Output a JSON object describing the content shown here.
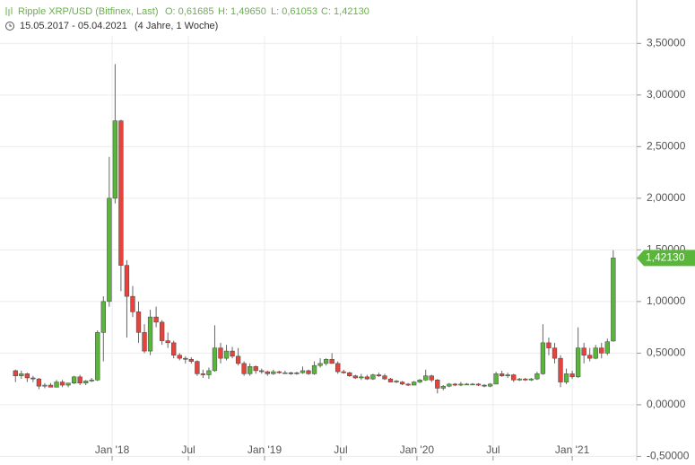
{
  "chart_data": {
    "type": "candlestick",
    "header": {
      "title": "Ripple XRP/USD (Bitfinex, Last)",
      "open": "O: 0,61685",
      "high": "H: 1,49650",
      "low": "L: 0,61053",
      "close": "C: 1,42130",
      "range": "15.05.2017 - 05.04.2021",
      "duration": "(4 Jahre, 1 Woche)"
    },
    "last_label": "1,42130",
    "up_color": "#5ab53b",
    "down_color": "#e5433b",
    "grid": true,
    "ylim": [
      -0.54,
      3.92
    ],
    "yticks": [
      {
        "value": -0.5,
        "label": "-0,50000"
      },
      {
        "value": 0,
        "label": "0,00000"
      },
      {
        "value": 0.5,
        "label": "0,50000"
      },
      {
        "value": 1,
        "label": "1,00000"
      },
      {
        "value": 1.5,
        "label": "1,50000"
      },
      {
        "value": 2,
        "label": "2,00000"
      },
      {
        "value": 2.5,
        "label": "2,50000"
      },
      {
        "value": 3,
        "label": "3,00000"
      },
      {
        "value": 3.5,
        "label": "3,50000"
      }
    ],
    "xticks": [
      {
        "value": 16.5,
        "label": "Jan '18"
      },
      {
        "value": 29.5,
        "label": "Jul"
      },
      {
        "value": 42.5,
        "label": "Jan '19"
      },
      {
        "value": 55.5,
        "label": "Jul"
      },
      {
        "value": 68.5,
        "label": "Jan '20"
      },
      {
        "value": 81.5,
        "label": "Jul"
      },
      {
        "value": 95,
        "label": "Jan '21"
      }
    ],
    "ohlc": [
      [
        0.33,
        0.34,
        0.22,
        0.28
      ],
      [
        0.28,
        0.33,
        0.25,
        0.3
      ],
      [
        0.3,
        0.31,
        0.22,
        0.26
      ],
      [
        0.26,
        0.28,
        0.22,
        0.25
      ],
      [
        0.25,
        0.26,
        0.15,
        0.18
      ],
      [
        0.18,
        0.21,
        0.16,
        0.19
      ],
      [
        0.19,
        0.21,
        0.17,
        0.17
      ],
      [
        0.17,
        0.24,
        0.17,
        0.22
      ],
      [
        0.22,
        0.24,
        0.17,
        0.19
      ],
      [
        0.19,
        0.21,
        0.17,
        0.21
      ],
      [
        0.21,
        0.28,
        0.2,
        0.27
      ],
      [
        0.27,
        0.29,
        0.19,
        0.21
      ],
      [
        0.21,
        0.24,
        0.19,
        0.23
      ],
      [
        0.23,
        0.26,
        0.22,
        0.24
      ],
      [
        0.24,
        0.72,
        0.23,
        0.7
      ],
      [
        0.7,
        1.05,
        0.42,
        1.0
      ],
      [
        1.0,
        2.4,
        0.95,
        2.0
      ],
      [
        2.0,
        3.3,
        1.95,
        2.75
      ],
      [
        2.75,
        2.76,
        1.1,
        1.35
      ],
      [
        1.35,
        1.4,
        0.65,
        1.05
      ],
      [
        1.05,
        1.15,
        0.85,
        0.9
      ],
      [
        0.9,
        1.0,
        0.6,
        0.7
      ],
      [
        0.7,
        0.78,
        0.5,
        0.52
      ],
      [
        0.52,
        0.92,
        0.48,
        0.85
      ],
      [
        0.85,
        0.95,
        0.75,
        0.8
      ],
      [
        0.8,
        0.82,
        0.58,
        0.62
      ],
      [
        0.62,
        0.7,
        0.55,
        0.6
      ],
      [
        0.6,
        0.62,
        0.45,
        0.48
      ],
      [
        0.48,
        0.5,
        0.43,
        0.45
      ],
      [
        0.45,
        0.47,
        0.4,
        0.44
      ],
      [
        0.44,
        0.46,
        0.4,
        0.42
      ],
      [
        0.42,
        0.43,
        0.28,
        0.3
      ],
      [
        0.3,
        0.34,
        0.26,
        0.29
      ],
      [
        0.29,
        0.36,
        0.25,
        0.33
      ],
      [
        0.33,
        0.77,
        0.32,
        0.55
      ],
      [
        0.55,
        0.6,
        0.4,
        0.45
      ],
      [
        0.45,
        0.58,
        0.43,
        0.52
      ],
      [
        0.52,
        0.56,
        0.45,
        0.47
      ],
      [
        0.47,
        0.55,
        0.38,
        0.4
      ],
      [
        0.4,
        0.42,
        0.28,
        0.3
      ],
      [
        0.3,
        0.4,
        0.28,
        0.37
      ],
      [
        0.37,
        0.38,
        0.3,
        0.33
      ],
      [
        0.33,
        0.35,
        0.3,
        0.32
      ],
      [
        0.32,
        0.33,
        0.28,
        0.3
      ],
      [
        0.3,
        0.34,
        0.29,
        0.32
      ],
      [
        0.32,
        0.33,
        0.3,
        0.31
      ],
      [
        0.31,
        0.33,
        0.3,
        0.31
      ],
      [
        0.31,
        0.32,
        0.29,
        0.3
      ],
      [
        0.3,
        0.32,
        0.29,
        0.31
      ],
      [
        0.31,
        0.37,
        0.3,
        0.33
      ],
      [
        0.33,
        0.34,
        0.29,
        0.3
      ],
      [
        0.3,
        0.42,
        0.29,
        0.38
      ],
      [
        0.38,
        0.45,
        0.36,
        0.4
      ],
      [
        0.4,
        0.45,
        0.38,
        0.44
      ],
      [
        0.44,
        0.5,
        0.4,
        0.4
      ],
      [
        0.4,
        0.42,
        0.3,
        0.32
      ],
      [
        0.32,
        0.34,
        0.3,
        0.31
      ],
      [
        0.31,
        0.32,
        0.27,
        0.28
      ],
      [
        0.28,
        0.29,
        0.25,
        0.26
      ],
      [
        0.26,
        0.3,
        0.24,
        0.27
      ],
      [
        0.27,
        0.29,
        0.24,
        0.25
      ],
      [
        0.25,
        0.3,
        0.24,
        0.29
      ],
      [
        0.29,
        0.31,
        0.27,
        0.28
      ],
      [
        0.28,
        0.3,
        0.24,
        0.25
      ],
      [
        0.25,
        0.26,
        0.22,
        0.22
      ],
      [
        0.22,
        0.24,
        0.21,
        0.23
      ],
      [
        0.22,
        0.23,
        0.19,
        0.2
      ],
      [
        0.2,
        0.21,
        0.18,
        0.19
      ],
      [
        0.19,
        0.23,
        0.19,
        0.22
      ],
      [
        0.22,
        0.25,
        0.21,
        0.24
      ],
      [
        0.24,
        0.34,
        0.23,
        0.28
      ],
      [
        0.28,
        0.29,
        0.22,
        0.24
      ],
      [
        0.24,
        0.25,
        0.11,
        0.16
      ],
      [
        0.16,
        0.19,
        0.14,
        0.18
      ],
      [
        0.18,
        0.21,
        0.17,
        0.2
      ],
      [
        0.2,
        0.21,
        0.18,
        0.19
      ],
      [
        0.19,
        0.22,
        0.18,
        0.2
      ],
      [
        0.2,
        0.21,
        0.19,
        0.2
      ],
      [
        0.2,
        0.21,
        0.19,
        0.2
      ],
      [
        0.2,
        0.21,
        0.18,
        0.19
      ],
      [
        0.19,
        0.2,
        0.17,
        0.18
      ],
      [
        0.18,
        0.21,
        0.17,
        0.2
      ],
      [
        0.2,
        0.32,
        0.2,
        0.3
      ],
      [
        0.3,
        0.33,
        0.27,
        0.28
      ],
      [
        0.28,
        0.31,
        0.26,
        0.29
      ],
      [
        0.29,
        0.3,
        0.22,
        0.24
      ],
      [
        0.24,
        0.26,
        0.23,
        0.25
      ],
      [
        0.25,
        0.26,
        0.23,
        0.24
      ],
      [
        0.24,
        0.26,
        0.23,
        0.25
      ],
      [
        0.25,
        0.32,
        0.24,
        0.3
      ],
      [
        0.3,
        0.78,
        0.29,
        0.6
      ],
      [
        0.6,
        0.65,
        0.48,
        0.55
      ],
      [
        0.55,
        0.6,
        0.4,
        0.45
      ],
      [
        0.45,
        0.48,
        0.17,
        0.22
      ],
      [
        0.22,
        0.35,
        0.2,
        0.3
      ],
      [
        0.3,
        0.33,
        0.25,
        0.27
      ],
      [
        0.27,
        0.75,
        0.26,
        0.55
      ],
      [
        0.55,
        0.6,
        0.4,
        0.48
      ],
      [
        0.48,
        0.55,
        0.42,
        0.45
      ],
      [
        0.45,
        0.58,
        0.44,
        0.55
      ],
      [
        0.55,
        0.6,
        0.45,
        0.5
      ],
      [
        0.5,
        0.64,
        0.48,
        0.61
      ],
      [
        0.61685,
        1.4965,
        0.61053,
        1.4213
      ]
    ]
  }
}
